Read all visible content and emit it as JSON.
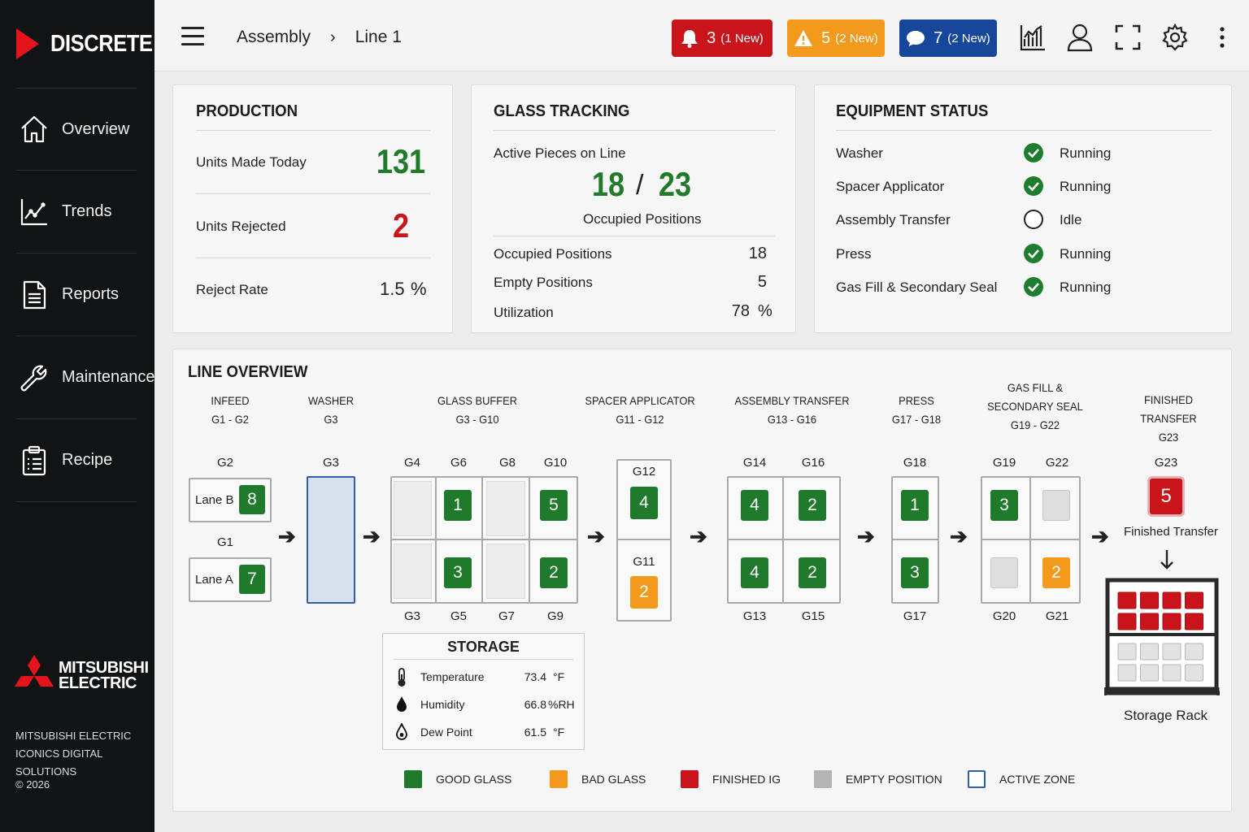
{
  "brand": {
    "name": "DISCRETE"
  },
  "sidebar": {
    "items": [
      {
        "label": "Overview",
        "icon": "home-icon"
      },
      {
        "label": "Trends",
        "icon": "trend-chart-icon"
      },
      {
        "label": "Reports",
        "icon": "document-icon"
      },
      {
        "label": "Maintenance",
        "icon": "wrench-icon"
      },
      {
        "label": "Recipe",
        "icon": "clipboard-icon"
      }
    ],
    "logo_line1": "MITSUBISHI",
    "logo_line2": "ELECTRIC",
    "company_line1": "MITSUBISHI ELECTRIC",
    "company_line2": "ICONICS DIGITAL SOLUTIONS",
    "copyright": "© 2026"
  },
  "header": {
    "breadcrumb": [
      "Assembly",
      "Line 1"
    ],
    "alarms": {
      "count": "3",
      "new": "(1 New)",
      "color": "#c9141b"
    },
    "warnings": {
      "count": "5",
      "new": "(2 New)",
      "color": "#f39a1c"
    },
    "messages": {
      "count": "7",
      "new": "(2 New)",
      "color": "#17479a"
    }
  },
  "production": {
    "title": "PRODUCTION",
    "units_made_label": "Units Made Today",
    "units_made": "131",
    "units_rejected_label": "Units Rejected",
    "units_rejected": "2",
    "reject_rate_label": "Reject Rate",
    "reject_rate": "1.5",
    "reject_rate_unit": "%"
  },
  "glass_tracking": {
    "title": "GLASS TRACKING",
    "active_label": "Active Pieces on Line",
    "active": "18",
    "slash": "/",
    "total": "23",
    "occupied_caption": "Occupied Positions",
    "rows": [
      {
        "label": "Occupied Positions",
        "value": "18",
        "unit": ""
      },
      {
        "label": "Empty Positions",
        "value": "5",
        "unit": ""
      },
      {
        "label": "Utilization",
        "value": "78",
        "unit": "%"
      }
    ]
  },
  "equipment": {
    "title": "EQUIPMENT STATUS",
    "rows": [
      {
        "name": "Washer",
        "status": "Running",
        "state": "run"
      },
      {
        "name": "Spacer Applicator",
        "status": "Running",
        "state": "run"
      },
      {
        "name": "Assembly Transfer",
        "status": "Idle",
        "state": "idle"
      },
      {
        "name": "Press",
        "status": "Running",
        "state": "run"
      },
      {
        "name": "Gas Fill & Secondary Seal",
        "status": "Running",
        "state": "run"
      }
    ]
  },
  "line": {
    "title": "LINE OVERVIEW",
    "stations": {
      "infeed": [
        "INFEED",
        "G1 - G2"
      ],
      "washer": [
        "WASHER",
        "G3"
      ],
      "buffer": [
        "GLASS BUFFER",
        "G3 - G10"
      ],
      "spacer": [
        "SPACER APPLICATOR",
        "G11 - G12"
      ],
      "assembly": [
        "ASSEMBLY TRANSFER",
        "G13 - G16"
      ],
      "press": [
        "PRESS",
        "G17 - G18"
      ],
      "gasfill": [
        "GAS FILL &",
        "SECONDARY SEAL",
        "G19 - G22"
      ],
      "finished": [
        "FINISHED TRANSFER",
        "G23"
      ]
    },
    "positions": {
      "G1": "G1",
      "G2": "G2",
      "G3": "G3",
      "G3b": "G3",
      "G4": "G4",
      "G5": "G5",
      "G6": "G6",
      "G7": "G7",
      "G8": "G8",
      "G9": "G9",
      "G10": "G10",
      "G11": "G11",
      "G12": "G12",
      "G13": "G13",
      "G14": "G14",
      "G15": "G15",
      "G16": "G16",
      "G17": "G17",
      "G18": "G18",
      "G19": "G19",
      "G20": "G20",
      "G21": "G21",
      "G22": "G22",
      "G23": "G23"
    },
    "infeed_lanes": {
      "lane_b": "Lane B",
      "lane_b_count": "8",
      "lane_a": "Lane A",
      "lane_a_count": "7"
    },
    "counts": {
      "G6": "1",
      "G10": "5",
      "G5": "3",
      "G9": "2",
      "G12": "4",
      "G11": "2",
      "G14": "4",
      "G16": "2",
      "G13": "4",
      "G15": "2",
      "G18": "1",
      "G17": "3",
      "G19": "3",
      "G21": "2",
      "G23": "5"
    },
    "finished_caption": "Finished Transfer",
    "storage_rack_caption": "Storage Rack",
    "storage_rack": {
      "filled": 8,
      "empty": 8
    }
  },
  "storage": {
    "title": "STORAGE",
    "rows": [
      {
        "label": "Temperature",
        "value": "73.4",
        "unit": "°F",
        "icon": "thermometer-icon"
      },
      {
        "label": "Humidity",
        "value": "66.8",
        "unit": "%RH",
        "icon": "droplet-icon"
      },
      {
        "label": "Dew Point",
        "value": "61.5",
        "unit": "°F",
        "icon": "dew-point-icon"
      }
    ]
  },
  "legend": [
    {
      "label": "GOOD GLASS",
      "color": "#1f7a2b"
    },
    {
      "label": "BAD GLASS",
      "color": "#f39a1c"
    },
    {
      "label": "FINISHED IG",
      "color": "#c9141b"
    },
    {
      "label": "EMPTY POSITION",
      "color": "#b4b4b4"
    },
    {
      "label": "ACTIVE ZONE",
      "color": "#2f5fa8"
    }
  ]
}
